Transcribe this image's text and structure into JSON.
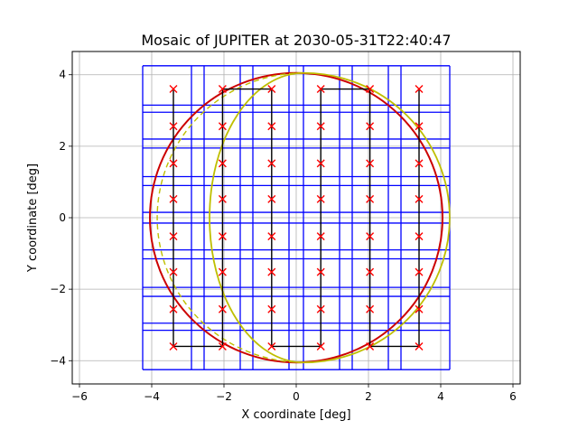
{
  "chart_data": {
    "type": "scatter",
    "title": "Mosaic of JUPITER at 2030-05-31T22:40:47",
    "xlabel": "X coordinate [deg]",
    "ylabel": "Y coordinate [deg]",
    "xlim": [
      -6.2,
      6.2
    ],
    "ylim": [
      -4.65,
      4.65
    ],
    "xticks": [
      -6,
      -4,
      -2,
      0,
      2,
      4,
      6
    ],
    "yticks": [
      -4,
      -2,
      0,
      2,
      4
    ],
    "xtick_labels": [
      "−6",
      "−4",
      "−2",
      "0",
      "2",
      "4",
      "6"
    ],
    "ytick_labels": [
      "−4",
      "−2",
      "0",
      "2",
      "4"
    ],
    "grid": true,
    "colors": {
      "tiles": "#0000ff",
      "pointings": "#ff0000",
      "scan_path": "#000000",
      "disk": "#cc0000",
      "terminator": "#bfbf00",
      "grid": "#b0b0b0"
    },
    "pointing_columns_x": [
      -3.4,
      -2.04,
      -0.68,
      0.68,
      2.04,
      3.4
    ],
    "pointing_rows_y": [
      3.6,
      2.56,
      1.52,
      0.52,
      -0.52,
      -1.52,
      -2.56,
      -3.6
    ],
    "tile_edges_x": [
      -4.25,
      -2.9,
      -2.55,
      -1.55,
      -1.2,
      -0.2,
      0.2,
      1.2,
      1.55,
      2.55,
      2.9,
      4.25
    ],
    "tile_edges_y": [
      4.25,
      3.15,
      2.95,
      2.2,
      1.95,
      1.15,
      0.9,
      0.15,
      -0.15,
      -0.9,
      -1.15,
      -1.95,
      -2.2,
      -2.95,
      -3.15,
      -4.25
    ],
    "disk": {
      "cx": 0,
      "cy": 0,
      "rx": 4.05,
      "ry": 4.05
    },
    "terminator": {
      "cx": 0.2,
      "cy": 0,
      "rx": 4.05,
      "ry": 4.05,
      "inner_rx": 2.6
    }
  }
}
